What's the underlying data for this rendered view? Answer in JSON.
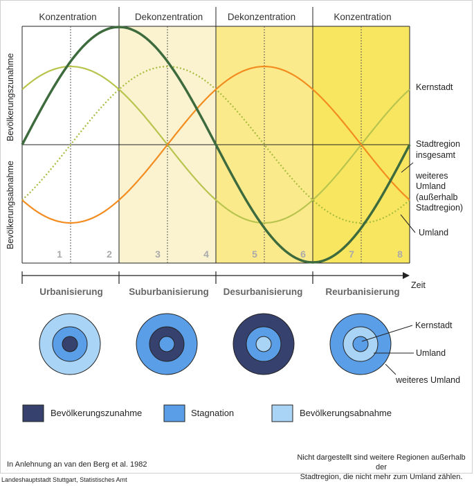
{
  "phases": [
    "Konzentration",
    "Dekonzentration",
    "Dekonzentration",
    "Konzentration"
  ],
  "y_axis": {
    "upper": "Bevölkerungszunahme",
    "lower": "Bevölkerungsabnahme"
  },
  "numbers": [
    "1",
    "2",
    "3",
    "4",
    "5",
    "6",
    "7",
    "8"
  ],
  "curve_labels": {
    "kernstadt": "Kernstadt",
    "stadtregion_1": "Stadtregion",
    "stadtregion_2": "insgesamt",
    "weiteres_1": "weiteres",
    "weiteres_2": "Umland",
    "weiteres_3": "(außerhalb",
    "weiteres_4": "Stadtregion)",
    "umland": "Umland"
  },
  "x_axis_label": "Zeit",
  "stages": [
    "Urbanisierung",
    "Suburbanisierung",
    "Desurbanisierung",
    "Reurbanisierung"
  ],
  "rings_labels": {
    "kernstadt": "Kernstadt",
    "umland": "Umland",
    "weiteres": "weiteres Umland"
  },
  "legend": [
    "Bevölkerungszunahme",
    "Stagnation",
    "Bevölkerungsabnahme"
  ],
  "colors": {
    "zunahme": "#36416e",
    "stagnation": "#5b9ee8",
    "abnahme": "#a9d4f5",
    "kernstadt_line": "#b5c248",
    "stadtregion_line": "#3e6b3e",
    "umland_line": "#f28c1e",
    "weiteres_line": "#a6bb3c",
    "bg_2": "#fbf3d0",
    "bg_3": "#fbea88",
    "bg_4": "#f8e65d"
  },
  "notes": {
    "source": "In Anlehnung an van den Berg et al. 1982",
    "right_1": "Nicht dargestellt sind weitere Regionen außerhalb der",
    "right_2": "Stadtregion, die nicht mehr zum Umland zählen.",
    "footer": "Landeshauptstadt Stuttgart, Statistisches Amt"
  }
}
